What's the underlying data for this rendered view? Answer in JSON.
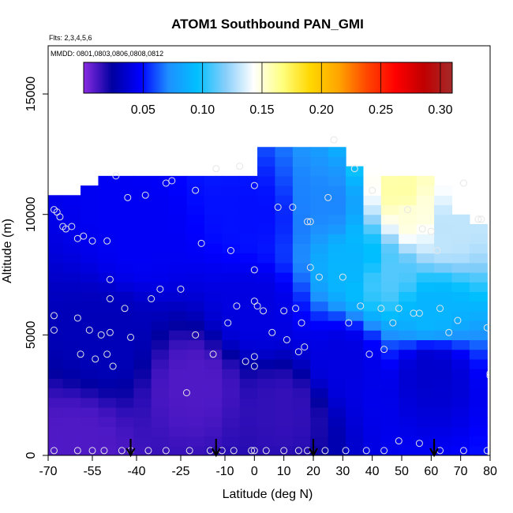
{
  "chart_data": {
    "type": "heatmap",
    "title": "ATOM1 Southbound PAN_GMI",
    "flights_note": "Flts: 2,3,4,5,6",
    "dates_note": "MMDD: 0801,0803,0806,0808,0812",
    "xlabel": "Latitude (deg N)",
    "ylabel": "Altitude (m)",
    "xlim": [
      -70,
      80
    ],
    "ylim": [
      0,
      17000
    ],
    "x_ticks": [
      -70,
      -55,
      -40,
      -25,
      -10,
      0,
      10,
      20,
      30,
      40,
      50,
      60,
      70,
      80
    ],
    "x_tick_labels": [
      "-70",
      "-55",
      "-40",
      "-25",
      "-10",
      "0",
      "10",
      "20",
      "30",
      "40",
      "50",
      "60",
      "70",
      "80"
    ],
    "y_ticks": [
      0,
      5000,
      10000,
      15000
    ],
    "y_tick_labels": [
      "0",
      "5000",
      "10000",
      "15000"
    ],
    "colorbar": {
      "range": [
        0,
        0.31
      ],
      "ticks": [
        0.05,
        0.1,
        0.15,
        0.2,
        0.25,
        0.3
      ],
      "tick_labels": [
        "0.05",
        "0.10",
        "0.15",
        "0.20",
        "0.25",
        "0.30"
      ],
      "colors": [
        "#8a2be2",
        "#0000a0",
        "#0000ff",
        "#1e90ff",
        "#00bfff",
        "#87cefa",
        "#ffffff",
        "#ffff80",
        "#ffd700",
        "#ffa500",
        "#ff4500",
        "#ff0000",
        "#c00000",
        "#a52a2a"
      ]
    },
    "profile_column_lat": [
      -68,
      -62,
      -56,
      -50,
      -44,
      -38,
      -32,
      -26,
      -20,
      -14,
      -8,
      -2,
      4,
      10,
      16,
      22,
      28,
      34,
      40,
      46,
      52,
      58,
      64,
      70,
      76
    ],
    "profile_top_altitude": [
      10500,
      10500,
      11000,
      11500,
      11500,
      11500,
      11500,
      11500,
      11500,
      11500,
      11500,
      11500,
      12500,
      12500,
      12500,
      12500,
      12500,
      12000,
      12000,
      11500,
      11500,
      11500,
      11000,
      10000,
      9500
    ],
    "background_color_points": [
      {
        "lat": -60,
        "alt": 300,
        "value": 0.01
      },
      {
        "lat": -20,
        "alt": 3000,
        "value": 0.01
      },
      {
        "lat": 10,
        "alt": 2000,
        "value": 0.015
      },
      {
        "lat": -50,
        "alt": 5000,
        "value": 0.03
      },
      {
        "lat": 0,
        "alt": 6000,
        "value": 0.04
      },
      {
        "lat": 30,
        "alt": 4000,
        "value": 0.04
      },
      {
        "lat": 60,
        "alt": 3500,
        "value": 0.035
      },
      {
        "lat": -40,
        "alt": 9000,
        "value": 0.045
      },
      {
        "lat": 0,
        "alt": 10000,
        "value": 0.05
      },
      {
        "lat": 25,
        "alt": 10500,
        "value": 0.07
      },
      {
        "lat": 35,
        "alt": 8000,
        "value": 0.09
      },
      {
        "lat": 45,
        "alt": 7500,
        "value": 0.11
      },
      {
        "lat": 55,
        "alt": 10000,
        "value": 0.15
      },
      {
        "lat": 65,
        "alt": 9500,
        "value": 0.13
      },
      {
        "lat": 50,
        "alt": 11000,
        "value": 0.16
      },
      {
        "lat": 60,
        "alt": 6000,
        "value": 0.09
      }
    ],
    "sample_points": [
      {
        "lat": -68,
        "alt": 10200
      },
      {
        "lat": -67,
        "alt": 10100
      },
      {
        "lat": -66,
        "alt": 9900
      },
      {
        "lat": -65,
        "alt": 9500
      },
      {
        "lat": -64,
        "alt": 9400
      },
      {
        "lat": -62,
        "alt": 9500
      },
      {
        "lat": -60,
        "alt": 9000
      },
      {
        "lat": -58,
        "alt": 9100
      },
      {
        "lat": -55,
        "alt": 8900
      },
      {
        "lat": -50,
        "alt": 8900
      },
      {
        "lat": -47,
        "alt": 11600
      },
      {
        "lat": -43,
        "alt": 10700
      },
      {
        "lat": -37,
        "alt": 10800
      },
      {
        "lat": -30,
        "alt": 11300
      },
      {
        "lat": -28,
        "alt": 11400
      },
      {
        "lat": -20,
        "alt": 11000
      },
      {
        "lat": -13,
        "alt": 11900
      },
      {
        "lat": -5,
        "alt": 12000
      },
      {
        "lat": 0,
        "alt": 11200
      },
      {
        "lat": -18,
        "alt": 8800
      },
      {
        "lat": -8,
        "alt": 8500
      },
      {
        "lat": -68,
        "alt": 5800
      },
      {
        "lat": -68,
        "alt": 5200
      },
      {
        "lat": -60,
        "alt": 5700
      },
      {
        "lat": -59,
        "alt": 4200
      },
      {
        "lat": -56,
        "alt": 5200
      },
      {
        "lat": -54,
        "alt": 4000
      },
      {
        "lat": -52,
        "alt": 5000
      },
      {
        "lat": -50,
        "alt": 4200
      },
      {
        "lat": -49,
        "alt": 7300
      },
      {
        "lat": -49,
        "alt": 6500
      },
      {
        "lat": -49,
        "alt": 5100
      },
      {
        "lat": -48,
        "alt": 3700
      },
      {
        "lat": -44,
        "alt": 6100
      },
      {
        "lat": -42,
        "alt": 4900
      },
      {
        "lat": -35,
        "alt": 6500
      },
      {
        "lat": -32,
        "alt": 6900
      },
      {
        "lat": -25,
        "alt": 6900
      },
      {
        "lat": -20,
        "alt": 5000
      },
      {
        "lat": -14,
        "alt": 4200
      },
      {
        "lat": -9,
        "alt": 5500
      },
      {
        "lat": -6,
        "alt": 6200
      },
      {
        "lat": -3,
        "alt": 3900
      },
      {
        "lat": 0,
        "alt": 6400
      },
      {
        "lat": 1,
        "alt": 6200
      },
      {
        "lat": 3,
        "alt": 6000
      },
      {
        "lat": 0,
        "alt": 7700
      },
      {
        "lat": 0,
        "alt": 4100
      },
      {
        "lat": 0,
        "alt": 3700
      },
      {
        "lat": 6,
        "alt": 5100
      },
      {
        "lat": 8,
        "alt": 10300
      },
      {
        "lat": 10,
        "alt": 6000
      },
      {
        "lat": 11,
        "alt": 4800
      },
      {
        "lat": 13,
        "alt": 10300
      },
      {
        "lat": 14,
        "alt": 6100
      },
      {
        "lat": 15,
        "alt": 4300
      },
      {
        "lat": 16,
        "alt": 5500
      },
      {
        "lat": 17,
        "alt": 4500
      },
      {
        "lat": 18,
        "alt": 9700
      },
      {
        "lat": 19,
        "alt": 9700
      },
      {
        "lat": 19,
        "alt": 7800
      },
      {
        "lat": 22,
        "alt": 7400
      },
      {
        "lat": 25,
        "alt": 10700
      },
      {
        "lat": 27,
        "alt": 13100
      },
      {
        "lat": 30,
        "alt": 7400
      },
      {
        "lat": 32,
        "alt": 5500
      },
      {
        "lat": 34,
        "alt": 11900
      },
      {
        "lat": 36,
        "alt": 6200
      },
      {
        "lat": 39,
        "alt": 4200
      },
      {
        "lat": 40,
        "alt": 11000
      },
      {
        "lat": 43,
        "alt": 6100
      },
      {
        "lat": 44,
        "alt": 4400
      },
      {
        "lat": 47,
        "alt": 5500
      },
      {
        "lat": 49,
        "alt": 6100
      },
      {
        "lat": 52,
        "alt": 10200
      },
      {
        "lat": 54,
        "alt": 5900
      },
      {
        "lat": 56,
        "alt": 5900
      },
      {
        "lat": 57,
        "alt": 9400
      },
      {
        "lat": 60,
        "alt": 9300
      },
      {
        "lat": 62,
        "alt": 8500
      },
      {
        "lat": 63,
        "alt": 6100
      },
      {
        "lat": 66,
        "alt": 5100
      },
      {
        "lat": 69,
        "alt": 5600
      },
      {
        "lat": 71,
        "alt": 11300
      },
      {
        "lat": 76,
        "alt": 9800
      },
      {
        "lat": 77,
        "alt": 9800
      },
      {
        "lat": 79,
        "alt": 5300
      },
      {
        "lat": 80,
        "alt": 3400
      },
      {
        "lat": 80,
        "alt": 3300
      },
      {
        "lat": -23,
        "alt": 2600
      },
      {
        "lat": -68,
        "alt": 200
      },
      {
        "lat": -60,
        "alt": 200
      },
      {
        "lat": -55,
        "alt": 200
      },
      {
        "lat": -51,
        "alt": 200
      },
      {
        "lat": -45,
        "alt": 200
      },
      {
        "lat": -42,
        "alt": 200
      },
      {
        "lat": -36,
        "alt": 200
      },
      {
        "lat": -30,
        "alt": 200
      },
      {
        "lat": -22,
        "alt": 200
      },
      {
        "lat": -15,
        "alt": 200
      },
      {
        "lat": -11,
        "alt": 200
      },
      {
        "lat": -7,
        "alt": 200
      },
      {
        "lat": -1,
        "alt": 200
      },
      {
        "lat": 0,
        "alt": 200
      },
      {
        "lat": 4,
        "alt": 200
      },
      {
        "lat": 10,
        "alt": 200
      },
      {
        "lat": 15,
        "alt": 200
      },
      {
        "lat": 18,
        "alt": 200
      },
      {
        "lat": 24,
        "alt": 200
      },
      {
        "lat": 31,
        "alt": 200
      },
      {
        "lat": 38,
        "alt": 200
      },
      {
        "lat": 44,
        "alt": 200
      },
      {
        "lat": 49,
        "alt": 600
      },
      {
        "lat": 56,
        "alt": 500
      },
      {
        "lat": 63,
        "alt": 200
      },
      {
        "lat": 71,
        "alt": 200
      },
      {
        "lat": 79,
        "alt": 200
      }
    ],
    "arrow_latitudes": [
      -42,
      -13,
      20,
      61
    ]
  }
}
